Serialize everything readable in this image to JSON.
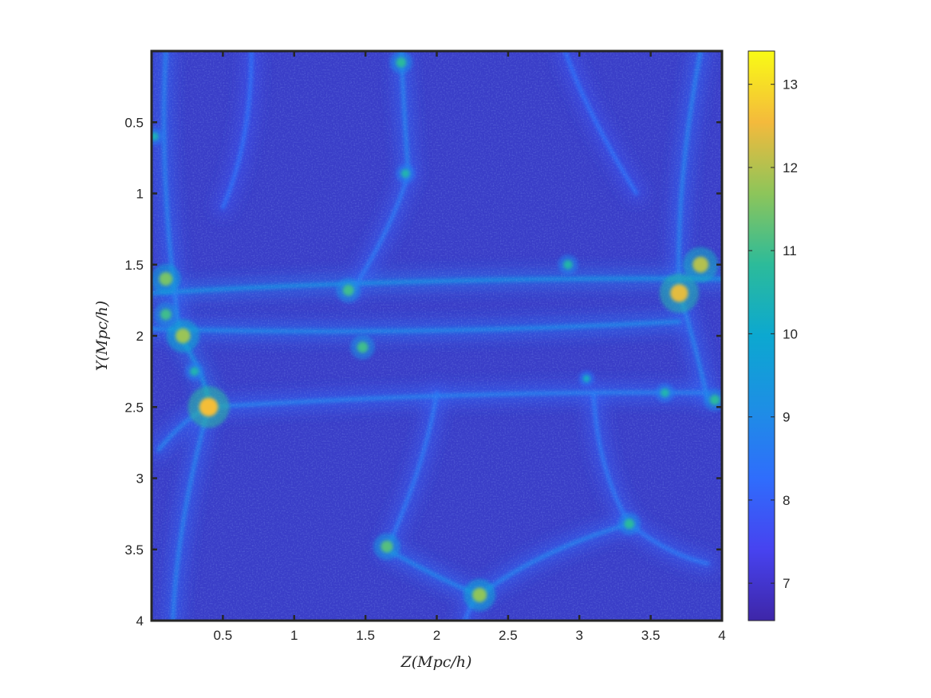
{
  "chart_data": {
    "type": "heatmap",
    "title": "",
    "xlabel": "Z(Mpc/h)",
    "ylabel": "Y(Mpc/h)",
    "xlim": [
      0,
      4
    ],
    "ylim": [
      0,
      4
    ],
    "y_reversed": true,
    "x_ticks": [
      0.5,
      1,
      1.5,
      2,
      2.5,
      3,
      3.5,
      4
    ],
    "x_tick_labels": [
      "0.5",
      "1",
      "1.5",
      "2",
      "2.5",
      "3",
      "3.5",
      "4"
    ],
    "y_ticks": [
      0.5,
      1,
      1.5,
      2,
      2.5,
      3,
      3.5,
      4
    ],
    "y_tick_labels": [
      "0.5",
      "1",
      "1.5",
      "2",
      "2.5",
      "3",
      "3.5",
      "4"
    ],
    "colorbar": {
      "range": [
        6.55,
        13.4
      ],
      "ticks": [
        7,
        8,
        9,
        10,
        11,
        12,
        13
      ],
      "tick_labels": [
        "7",
        "8",
        "9",
        "10",
        "11",
        "12",
        "13"
      ],
      "colormap": "parula"
    },
    "grid": false,
    "description_of_field": "cosmic web density field: filaments and voids",
    "bright_halos": [
      {
        "z": 0.4,
        "y": 2.5,
        "value": 12.6
      },
      {
        "z": 3.7,
        "y": 1.7,
        "value": 12.4
      },
      {
        "z": 3.85,
        "y": 1.5,
        "value": 12.0
      },
      {
        "z": 0.22,
        "y": 2.0,
        "value": 11.8
      },
      {
        "z": 0.1,
        "y": 1.6,
        "value": 11.5
      },
      {
        "z": 2.3,
        "y": 3.82,
        "value": 11.7
      },
      {
        "z": 1.65,
        "y": 3.48,
        "value": 11.2
      },
      {
        "z": 1.48,
        "y": 2.08,
        "value": 11.0
      },
      {
        "z": 1.38,
        "y": 1.68,
        "value": 11.0
      },
      {
        "z": 0.1,
        "y": 1.85,
        "value": 11.0
      },
      {
        "z": 3.35,
        "y": 3.32,
        "value": 10.8
      },
      {
        "z": 2.92,
        "y": 1.5,
        "value": 10.6
      },
      {
        "z": 1.78,
        "y": 0.86,
        "value": 10.5
      },
      {
        "z": 1.75,
        "y": 0.08,
        "value": 10.8
      },
      {
        "z": 0.3,
        "y": 2.25,
        "value": 10.5
      },
      {
        "z": 0.02,
        "y": 0.6,
        "value": 10.4
      },
      {
        "z": 3.6,
        "y": 2.4,
        "value": 10.5
      },
      {
        "z": 3.95,
        "y": 2.45,
        "value": 10.8
      },
      {
        "z": 3.05,
        "y": 2.3,
        "value": 10.2
      }
    ],
    "filaments": [
      {
        "from": [
          0.0,
          1.7
        ],
        "to": [
          4.0,
          1.6
        ],
        "value": 9.2
      },
      {
        "from": [
          0.0,
          1.95
        ],
        "to": [
          3.7,
          1.9
        ],
        "value": 9.0
      },
      {
        "from": [
          0.4,
          2.5
        ],
        "to": [
          3.9,
          2.4
        ],
        "value": 8.8
      },
      {
        "from": [
          0.4,
          2.5
        ],
        "to": [
          0.15,
          4.0
        ],
        "value": 8.8
      },
      {
        "from": [
          0.4,
          2.5
        ],
        "to": [
          0.05,
          2.8
        ],
        "value": 8.8
      },
      {
        "from": [
          0.2,
          2.0
        ],
        "to": [
          0.4,
          2.5
        ],
        "value": 9.2
      },
      {
        "from": [
          0.1,
          0.0
        ],
        "to": [
          0.2,
          2.0
        ],
        "value": 8.8
      },
      {
        "from": [
          1.75,
          0.0
        ],
        "to": [
          1.8,
          0.86
        ],
        "value": 8.8
      },
      {
        "from": [
          1.8,
          0.86
        ],
        "to": [
          1.4,
          1.7
        ],
        "value": 8.6
      },
      {
        "from": [
          3.7,
          1.7
        ],
        "to": [
          3.85,
          0.0
        ],
        "value": 8.8
      },
      {
        "from": [
          3.7,
          1.7
        ],
        "to": [
          3.9,
          2.45
        ],
        "value": 8.8
      },
      {
        "from": [
          1.65,
          3.5
        ],
        "to": [
          2.3,
          3.82
        ],
        "value": 8.9
      },
      {
        "from": [
          2.3,
          3.82
        ],
        "to": [
          3.35,
          3.32
        ],
        "value": 8.8
      },
      {
        "from": [
          3.35,
          3.32
        ],
        "to": [
          3.9,
          3.6
        ],
        "value": 8.6
      },
      {
        "from": [
          1.65,
          3.5
        ],
        "to": [
          2.0,
          2.4
        ],
        "value": 8.6
      },
      {
        "from": [
          3.35,
          3.32
        ],
        "to": [
          3.1,
          2.4
        ],
        "value": 8.6
      },
      {
        "from": [
          2.3,
          3.82
        ],
        "to": [
          2.2,
          4.0
        ],
        "value": 8.6
      },
      {
        "from": [
          0.7,
          0.0
        ],
        "to": [
          0.5,
          1.1
        ],
        "value": 8.4
      },
      {
        "from": [
          2.9,
          0.0
        ],
        "to": [
          3.4,
          1.0
        ],
        "value": 8.4
      }
    ]
  }
}
